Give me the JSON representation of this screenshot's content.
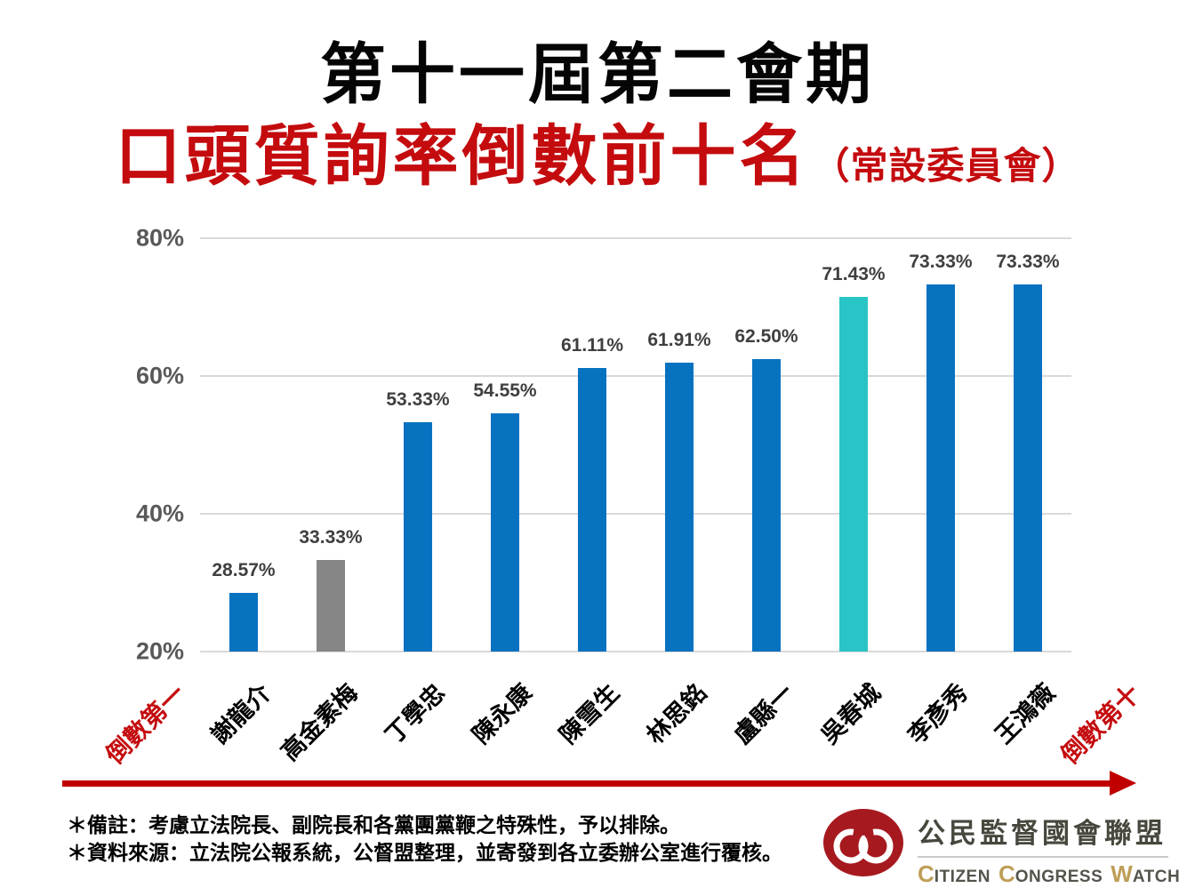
{
  "title": {
    "line1": "第十一屆第二會期",
    "line2_main": "口頭質詢率倒數前十名",
    "line2_sub": "（常設委員會）"
  },
  "chart_data": {
    "type": "bar",
    "title": "第十一屆第二會期 口頭質詢率倒數前十名（常設委員會）",
    "categories": [
      "謝龍介",
      "高金素梅",
      "丁學忠",
      "陳永康",
      "陳雪生",
      "林思銘",
      "盧縣一",
      "吳春城",
      "李彥秀",
      "王鴻薇"
    ],
    "values": [
      28.57,
      33.33,
      53.33,
      54.55,
      61.11,
      61.91,
      62.5,
      71.43,
      73.33,
      73.33
    ],
    "value_labels": [
      "28.57%",
      "33.33%",
      "53.33%",
      "54.55%",
      "61.11%",
      "61.91%",
      "62.50%",
      "71.43%",
      "73.33%",
      "73.33%"
    ],
    "bar_colors": [
      "#0772C0",
      "#868686",
      "#0772C0",
      "#0772C0",
      "#0772C0",
      "#0772C0",
      "#0772C0",
      "#29C4C5",
      "#0772C0",
      "#0772C0"
    ],
    "ylim": [
      20,
      80
    ],
    "yticks": [
      {
        "value": 20,
        "label": "20%"
      },
      {
        "value": 40,
        "label": "40%"
      },
      {
        "value": 60,
        "label": "60%"
      },
      {
        "value": 80,
        "label": "80%"
      }
    ],
    "grid": true,
    "legend": false,
    "xlabel": "",
    "ylabel": "",
    "left_annotation": "倒數第一",
    "right_annotation": "倒數第十",
    "annotation_color": "#C40B0E",
    "axis_arrow_color": "#C00000"
  },
  "footer": {
    "note1": "＊備註：考慮立法院長、副院長和各黨團黨鞭之特殊性，予以排除。",
    "note2": "＊資料來源：立法院公報系統，公督盟整理，並寄發到各立委辦公室進行覆核。"
  },
  "logo": {
    "org_zh": "公民監督國會聯盟",
    "org_en": "Citizen Congress Watch",
    "colors": {
      "ellipse_red": "#A6191E",
      "accent_gold": "#BE9E56",
      "text_gray": "#54544C"
    }
  }
}
